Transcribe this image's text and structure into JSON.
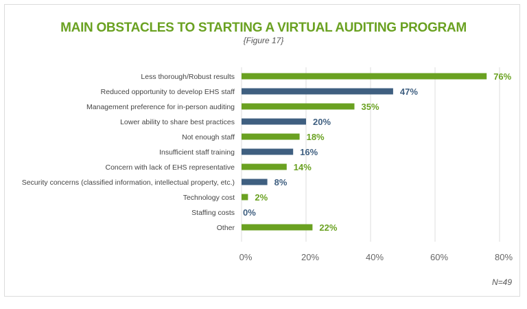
{
  "chart_data": {
    "type": "bar",
    "orientation": "horizontal",
    "title": "MAIN OBSTACLES TO STARTING A VIRTUAL AUDITING PROGRAM",
    "subtitle": "{Figure 17}",
    "categories": [
      "Less thorough/Robust results",
      "Reduced opportunity to develop EHS staff",
      "Management preference for in-person auditing",
      "Lower ability to share best practices",
      "Not enough staff",
      "Insufficient staff training",
      "Concern with lack of EHS representative",
      "Security concerns (classified information, intellectual property, etc.)",
      "Technology cost",
      "Staffing costs",
      "Other"
    ],
    "values": [
      76,
      47,
      35,
      20,
      18,
      16,
      14,
      8,
      2,
      0,
      22
    ],
    "data_labels": [
      "76%",
      "47%",
      "35%",
      "20%",
      "18%",
      "16%",
      "14%",
      "8%",
      "2%",
      "0%",
      "22%"
    ],
    "bar_colors": [
      "#6aa121",
      "#3f5f80",
      "#6aa121",
      "#3f5f80",
      "#6aa121",
      "#3f5f80",
      "#6aa121",
      "#3f5f80",
      "#6aa121",
      "#3f5f80",
      "#6aa121"
    ],
    "xlim": [
      0,
      80
    ],
    "xticks": [
      "0%",
      "20%",
      "40%",
      "60%",
      "80%"
    ],
    "grid": "vertical",
    "note": "N=49"
  }
}
